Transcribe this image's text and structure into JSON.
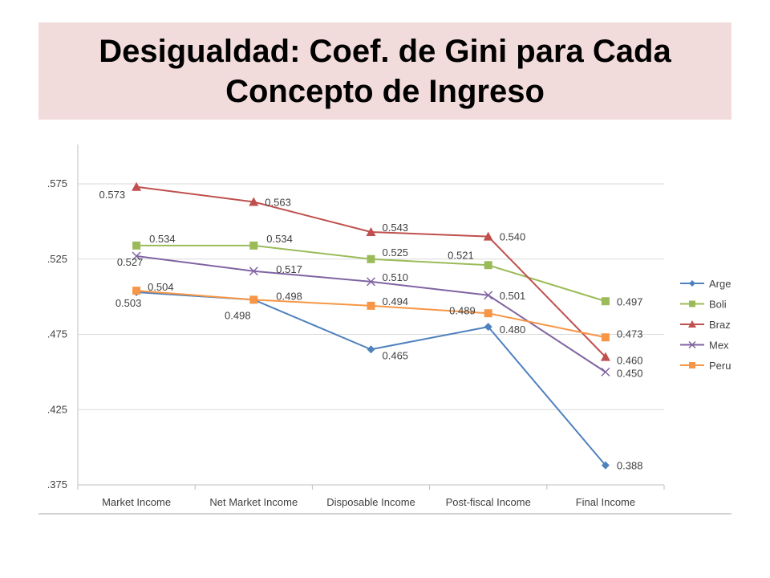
{
  "slide": {
    "title": "Desigualdad: Coef. de Gini para Cada Concepto de Ingreso"
  },
  "chart_data": {
    "type": "line",
    "title": "",
    "xlabel": "",
    "ylabel": "",
    "categories": [
      "Market Income",
      "Net Market Income",
      "Disposable Income",
      "Post-fiscal Income",
      "Final Income"
    ],
    "y_tick_labels": [
      ".575",
      ".525",
      ".475",
      ".425",
      ".375"
    ],
    "ylim": [
      0.375,
      0.575
    ],
    "grid": true,
    "legend_position": "right",
    "series": [
      {
        "name": "Argentina",
        "legend_label": "Arge",
        "color": "#4f81bd",
        "marker": "diamond",
        "values": [
          0.503,
          0.498,
          0.465,
          0.48,
          0.388
        ],
        "labels": [
          "0.503",
          "0.498",
          "0.465",
          "0.480",
          "0.388"
        ]
      },
      {
        "name": "Bolivia",
        "legend_label": "Boli",
        "color": "#9bbb59",
        "marker": "square",
        "values": [
          0.534,
          0.534,
          0.525,
          0.521,
          0.497
        ],
        "labels": [
          "0.534",
          "0.534",
          "0.525",
          "0.521",
          "0.497"
        ]
      },
      {
        "name": "Brazil",
        "legend_label": "Braz",
        "color": "#c0504d",
        "marker": "triangle",
        "values": [
          0.573,
          0.563,
          0.543,
          0.54,
          0.46
        ],
        "labels": [
          "0.573",
          "0.563",
          "0.543",
          "0.540",
          "0.460"
        ]
      },
      {
        "name": "Mexico",
        "legend_label": "Mex",
        "color": "#8064a2",
        "marker": "x",
        "values": [
          0.527,
          0.517,
          0.51,
          0.501,
          0.45
        ],
        "labels": [
          "0.527",
          "0.517",
          "0.510",
          "0.501",
          "0.450"
        ]
      },
      {
        "name": "Peru",
        "legend_label": "Peru",
        "color": "#f79646",
        "marker": "square",
        "values": [
          0.504,
          0.498,
          0.494,
          0.489,
          0.473
        ],
        "labels": [
          "0.504",
          "0.498",
          "0.494",
          "0.489",
          "0.473"
        ]
      }
    ]
  }
}
